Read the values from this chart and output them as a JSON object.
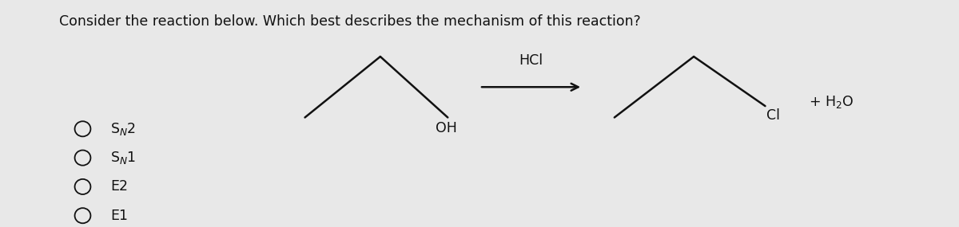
{
  "background_color": "#e8e8e8",
  "question_text": "Consider the reaction below. Which best describes the mechanism of this reaction?",
  "question_fontsize": 12.5,
  "hcl_label": "HCl",
  "h2o_label": "+ H$_2$O",
  "cl_label": "Cl",
  "oh_label": "OH",
  "choices": [
    "S$_{N}$2",
    "S$_{N}$1",
    "E2",
    "E1"
  ],
  "line_color": "#111111",
  "line_width": 1.8,
  "text_color": "#111111",
  "choice_fontsize": 12.5,
  "label_fontsize": 12.5
}
